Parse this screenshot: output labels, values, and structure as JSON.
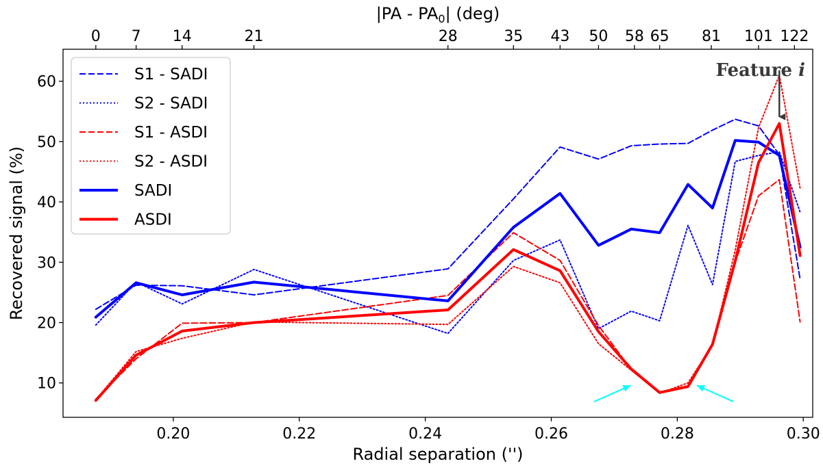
{
  "chart_data": {
    "type": "line",
    "xlabel": "Radial separation ('')",
    "ylabel": "Recovered signal (%)",
    "top_axis_label_prefix": "|PA - PA",
    "top_axis_label_sub": "0",
    "top_axis_label_suffix": "| (deg)",
    "xlim": [
      0.1825,
      0.3015
    ],
    "ylim": [
      4.3,
      65.3
    ],
    "x_ticks": [
      0.2,
      0.22,
      0.24,
      0.26,
      0.28,
      0.3
    ],
    "x_tick_labels": [
      "0.20",
      "0.22",
      "0.24",
      "0.26",
      "0.28",
      "0.30"
    ],
    "y_ticks": [
      10,
      20,
      30,
      40,
      50,
      60
    ],
    "y_tick_labels": [
      "10",
      "20",
      "30",
      "40",
      "50",
      "60"
    ],
    "top_ticks": [
      0.1877,
      0.1941,
      0.2014,
      0.2128,
      0.2436,
      0.254,
      0.2614,
      0.2675,
      0.2732,
      0.2772,
      0.2854,
      0.2929,
      0.2986
    ],
    "top_tick_labels": [
      "0",
      "7",
      "14",
      "21",
      "28",
      "35",
      "43",
      "50",
      "58",
      "65",
      "81",
      "101",
      "122"
    ],
    "x": [
      0.1877,
      0.1941,
      0.2014,
      0.2128,
      0.2436,
      0.254,
      0.2614,
      0.2675,
      0.2727,
      0.2772,
      0.2817,
      0.2856,
      0.2892,
      0.2929,
      0.2962,
      0.2995
    ],
    "series": [
      {
        "name": "S1 - SADI",
        "color": "#0000ff",
        "style": "dashed",
        "width": 2,
        "values": [
          22.2,
          26.2,
          26.1,
          24.6,
          28.9,
          40.5,
          49.1,
          47.1,
          49.3,
          49.6,
          49.7,
          51.9,
          53.7,
          52.6,
          47.8,
          27.2
        ]
      },
      {
        "name": "S2 - SADI",
        "color": "#0000ff",
        "style": "dotted",
        "width": 2,
        "values": [
          19.6,
          26.7,
          23.1,
          28.8,
          18.2,
          30.3,
          33.7,
          19.0,
          21.9,
          20.3,
          36.1,
          26.3,
          46.7,
          47.7,
          48.3,
          38.3
        ]
      },
      {
        "name": "S1 - ASDI",
        "color": "#ff0000",
        "style": "dashed",
        "width": 2,
        "values": [
          7.3,
          14.0,
          19.9,
          20.0,
          24.5,
          34.9,
          30.3,
          19.5,
          12.2,
          8.5,
          9.5,
          16.4,
          30.0,
          41.0,
          43.7,
          20.1
        ]
      },
      {
        "name": "S2 - ASDI",
        "color": "#ff0000",
        "style": "dotted",
        "width": 2,
        "values": [
          7.2,
          15.2,
          17.4,
          20.1,
          19.7,
          29.3,
          26.6,
          16.5,
          12.1,
          8.3,
          10.0,
          16.3,
          32.0,
          52.3,
          61.0,
          42.3
        ]
      },
      {
        "name": "SADI",
        "color": "#0000ff",
        "style": "solid",
        "width": 4,
        "values": [
          20.9,
          26.6,
          24.6,
          26.7,
          23.6,
          35.8,
          41.4,
          32.8,
          35.5,
          34.9,
          42.9,
          39.0,
          50.2,
          49.9,
          47.7,
          32.5
        ]
      },
      {
        "name": "ASDI",
        "color": "#ff0000",
        "style": "solid",
        "width": 4,
        "values": [
          7.1,
          14.6,
          18.6,
          20.0,
          22.1,
          32.1,
          28.6,
          18.5,
          12.3,
          8.4,
          9.4,
          16.4,
          30.2,
          46.5,
          53.0,
          31.1
        ]
      }
    ],
    "annotations": [
      {
        "text": "Feature",
        "italic_suffix": "i",
        "arrow_x": 0.2962,
        "arrow_from_y": 61.8,
        "arrow_to_y": 54.1,
        "color": "#3a3a3a"
      }
    ],
    "markers": [
      {
        "type": "arrow",
        "color": "#00ffff",
        "from": [
          0.2668,
          6.9
        ],
        "to": [
          0.2726,
          9.6
        ]
      },
      {
        "type": "arrow",
        "color": "#00ffff",
        "from": [
          0.2889,
          6.9
        ],
        "to": [
          0.2831,
          9.6
        ]
      }
    ],
    "legend_position": "upper-left"
  }
}
